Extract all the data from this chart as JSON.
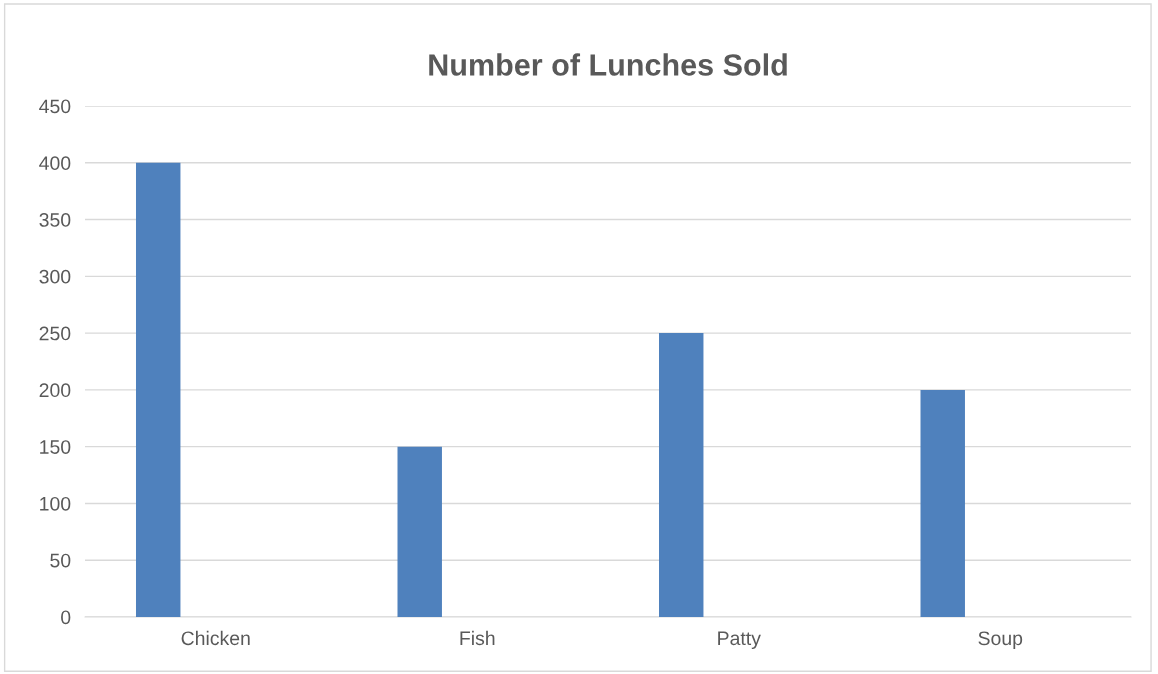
{
  "chart_data": {
    "type": "bar",
    "title": "Number of Lunches Sold",
    "categories": [
      "Chicken",
      "Fish",
      "Patty",
      "Soup"
    ],
    "series": [
      {
        "color": "#4f81bd",
        "values": [
          400,
          150,
          250,
          200
        ]
      },
      {
        "values": [
          null,
          null,
          null,
          null
        ]
      }
    ],
    "ylim": [
      0,
      450
    ],
    "yticks": [
      0,
      50,
      100,
      150,
      200,
      250,
      300,
      350,
      400,
      450
    ],
    "grid": "y",
    "legend": false
  }
}
